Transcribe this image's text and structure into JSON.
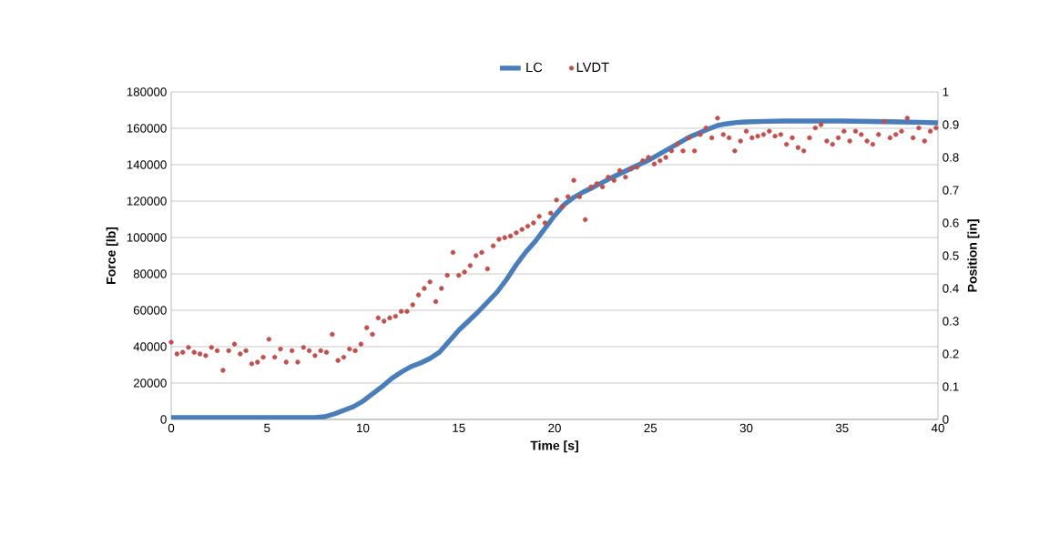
{
  "chart_data": {
    "type": "line",
    "xlabel": "Time [s]",
    "ylabel": "Force [lb]",
    "y2label": "Position [in]",
    "xlim": [
      0,
      40
    ],
    "xticks": [
      0,
      5,
      10,
      15,
      20,
      25,
      30,
      35,
      40
    ],
    "ylim": [
      0,
      180000
    ],
    "yticks": [
      0,
      20000,
      40000,
      60000,
      80000,
      100000,
      120000,
      140000,
      160000,
      180000
    ],
    "y2lim": [
      0,
      1
    ],
    "y2ticks": [
      0,
      0.1,
      0.2,
      0.3,
      0.4,
      0.5,
      0.6,
      0.7,
      0.8,
      0.9,
      1
    ],
    "grid": "y",
    "legend": "top",
    "series": [
      {
        "name": "LC",
        "marker": "none",
        "color": "#4a7ebb",
        "x": [
          0,
          2,
          4,
          6,
          7.5,
          8,
          8.5,
          9,
          9.5,
          10,
          10.5,
          11,
          11.5,
          12,
          12.5,
          13,
          13.5,
          14,
          14.5,
          15,
          15.5,
          16,
          16.5,
          17,
          17.5,
          18,
          18.5,
          19,
          19.5,
          20,
          20.5,
          21,
          21.5,
          22,
          23,
          24,
          25,
          26,
          27,
          28,
          28.5,
          29,
          29.5,
          30,
          31,
          32,
          35,
          38,
          40
        ],
        "values": [
          1000,
          1000,
          1000,
          1000,
          1000,
          1500,
          3000,
          5000,
          7000,
          10000,
          14000,
          18000,
          22500,
          26000,
          29000,
          31000,
          33500,
          37000,
          43000,
          49000,
          54000,
          59000,
          64500,
          70000,
          77000,
          85000,
          92000,
          98000,
          105000,
          112000,
          118000,
          122000,
          125000,
          127500,
          133000,
          138000,
          143000,
          149000,
          155000,
          159500,
          161500,
          162500,
          163200,
          163500,
          163800,
          164000,
          164000,
          163500,
          163000
        ]
      },
      {
        "name": "LVDT",
        "type": "scatter",
        "axis": "y2",
        "marker": "circle",
        "color": "#c0504d",
        "x": [
          0,
          0.3,
          0.6,
          0.9,
          1.2,
          1.5,
          1.8,
          2.1,
          2.4,
          2.7,
          3.0,
          3.3,
          3.6,
          3.9,
          4.2,
          4.5,
          4.8,
          5.1,
          5.4,
          5.7,
          6.0,
          6.3,
          6.6,
          6.9,
          7.2,
          7.5,
          7.8,
          8.1,
          8.4,
          8.7,
          9.0,
          9.3,
          9.6,
          9.9,
          10.2,
          10.5,
          10.8,
          11.1,
          11.4,
          11.7,
          12.0,
          12.3,
          12.6,
          12.9,
          13.2,
          13.5,
          13.8,
          14.1,
          14.4,
          14.7,
          15.0,
          15.3,
          15.6,
          15.9,
          16.2,
          16.5,
          16.8,
          17.1,
          17.4,
          17.7,
          18.0,
          18.3,
          18.6,
          18.9,
          19.2,
          19.5,
          19.8,
          20.1,
          20.4,
          20.7,
          21.0,
          21.3,
          21.6,
          21.9,
          22.2,
          22.5,
          22.8,
          23.1,
          23.4,
          23.7,
          24.0,
          24.3,
          24.6,
          24.9,
          25.2,
          25.5,
          25.8,
          26.1,
          26.4,
          26.7,
          27.0,
          27.3,
          27.6,
          27.9,
          28.2,
          28.5,
          28.8,
          29.1,
          29.4,
          29.7,
          30.0,
          30.3,
          30.6,
          30.9,
          31.2,
          31.5,
          31.8,
          32.1,
          32.4,
          32.7,
          33.0,
          33.3,
          33.6,
          33.9,
          34.2,
          34.5,
          34.8,
          35.1,
          35.4,
          35.7,
          36.0,
          36.3,
          36.6,
          36.9,
          37.2,
          37.5,
          37.8,
          38.1,
          38.4,
          38.7,
          39.0,
          39.3,
          39.6,
          39.9
        ],
        "values": [
          0.236,
          0.2,
          0.205,
          0.22,
          0.205,
          0.2,
          0.195,
          0.22,
          0.21,
          0.15,
          0.21,
          0.23,
          0.2,
          0.21,
          0.17,
          0.175,
          0.19,
          0.245,
          0.19,
          0.215,
          0.175,
          0.21,
          0.175,
          0.22,
          0.21,
          0.195,
          0.21,
          0.205,
          0.26,
          0.18,
          0.19,
          0.215,
          0.21,
          0.23,
          0.28,
          0.26,
          0.31,
          0.3,
          0.31,
          0.315,
          0.33,
          0.33,
          0.35,
          0.38,
          0.4,
          0.42,
          0.36,
          0.4,
          0.44,
          0.51,
          0.44,
          0.45,
          0.47,
          0.5,
          0.51,
          0.46,
          0.53,
          0.55,
          0.555,
          0.56,
          0.57,
          0.58,
          0.59,
          0.6,
          0.62,
          0.6,
          0.63,
          0.67,
          0.65,
          0.68,
          0.73,
          0.68,
          0.61,
          0.71,
          0.72,
          0.71,
          0.74,
          0.73,
          0.76,
          0.74,
          0.765,
          0.77,
          0.79,
          0.8,
          0.78,
          0.79,
          0.8,
          0.82,
          0.84,
          0.82,
          0.86,
          0.82,
          0.87,
          0.89,
          0.86,
          0.92,
          0.87,
          0.86,
          0.82,
          0.85,
          0.88,
          0.86,
          0.865,
          0.87,
          0.88,
          0.865,
          0.87,
          0.84,
          0.86,
          0.83,
          0.82,
          0.86,
          0.89,
          0.9,
          0.85,
          0.84,
          0.86,
          0.88,
          0.85,
          0.88,
          0.87,
          0.85,
          0.84,
          0.87,
          0.91,
          0.86,
          0.87,
          0.88,
          0.92,
          0.86,
          0.89,
          0.85,
          0.88,
          0.89
        ]
      }
    ]
  }
}
